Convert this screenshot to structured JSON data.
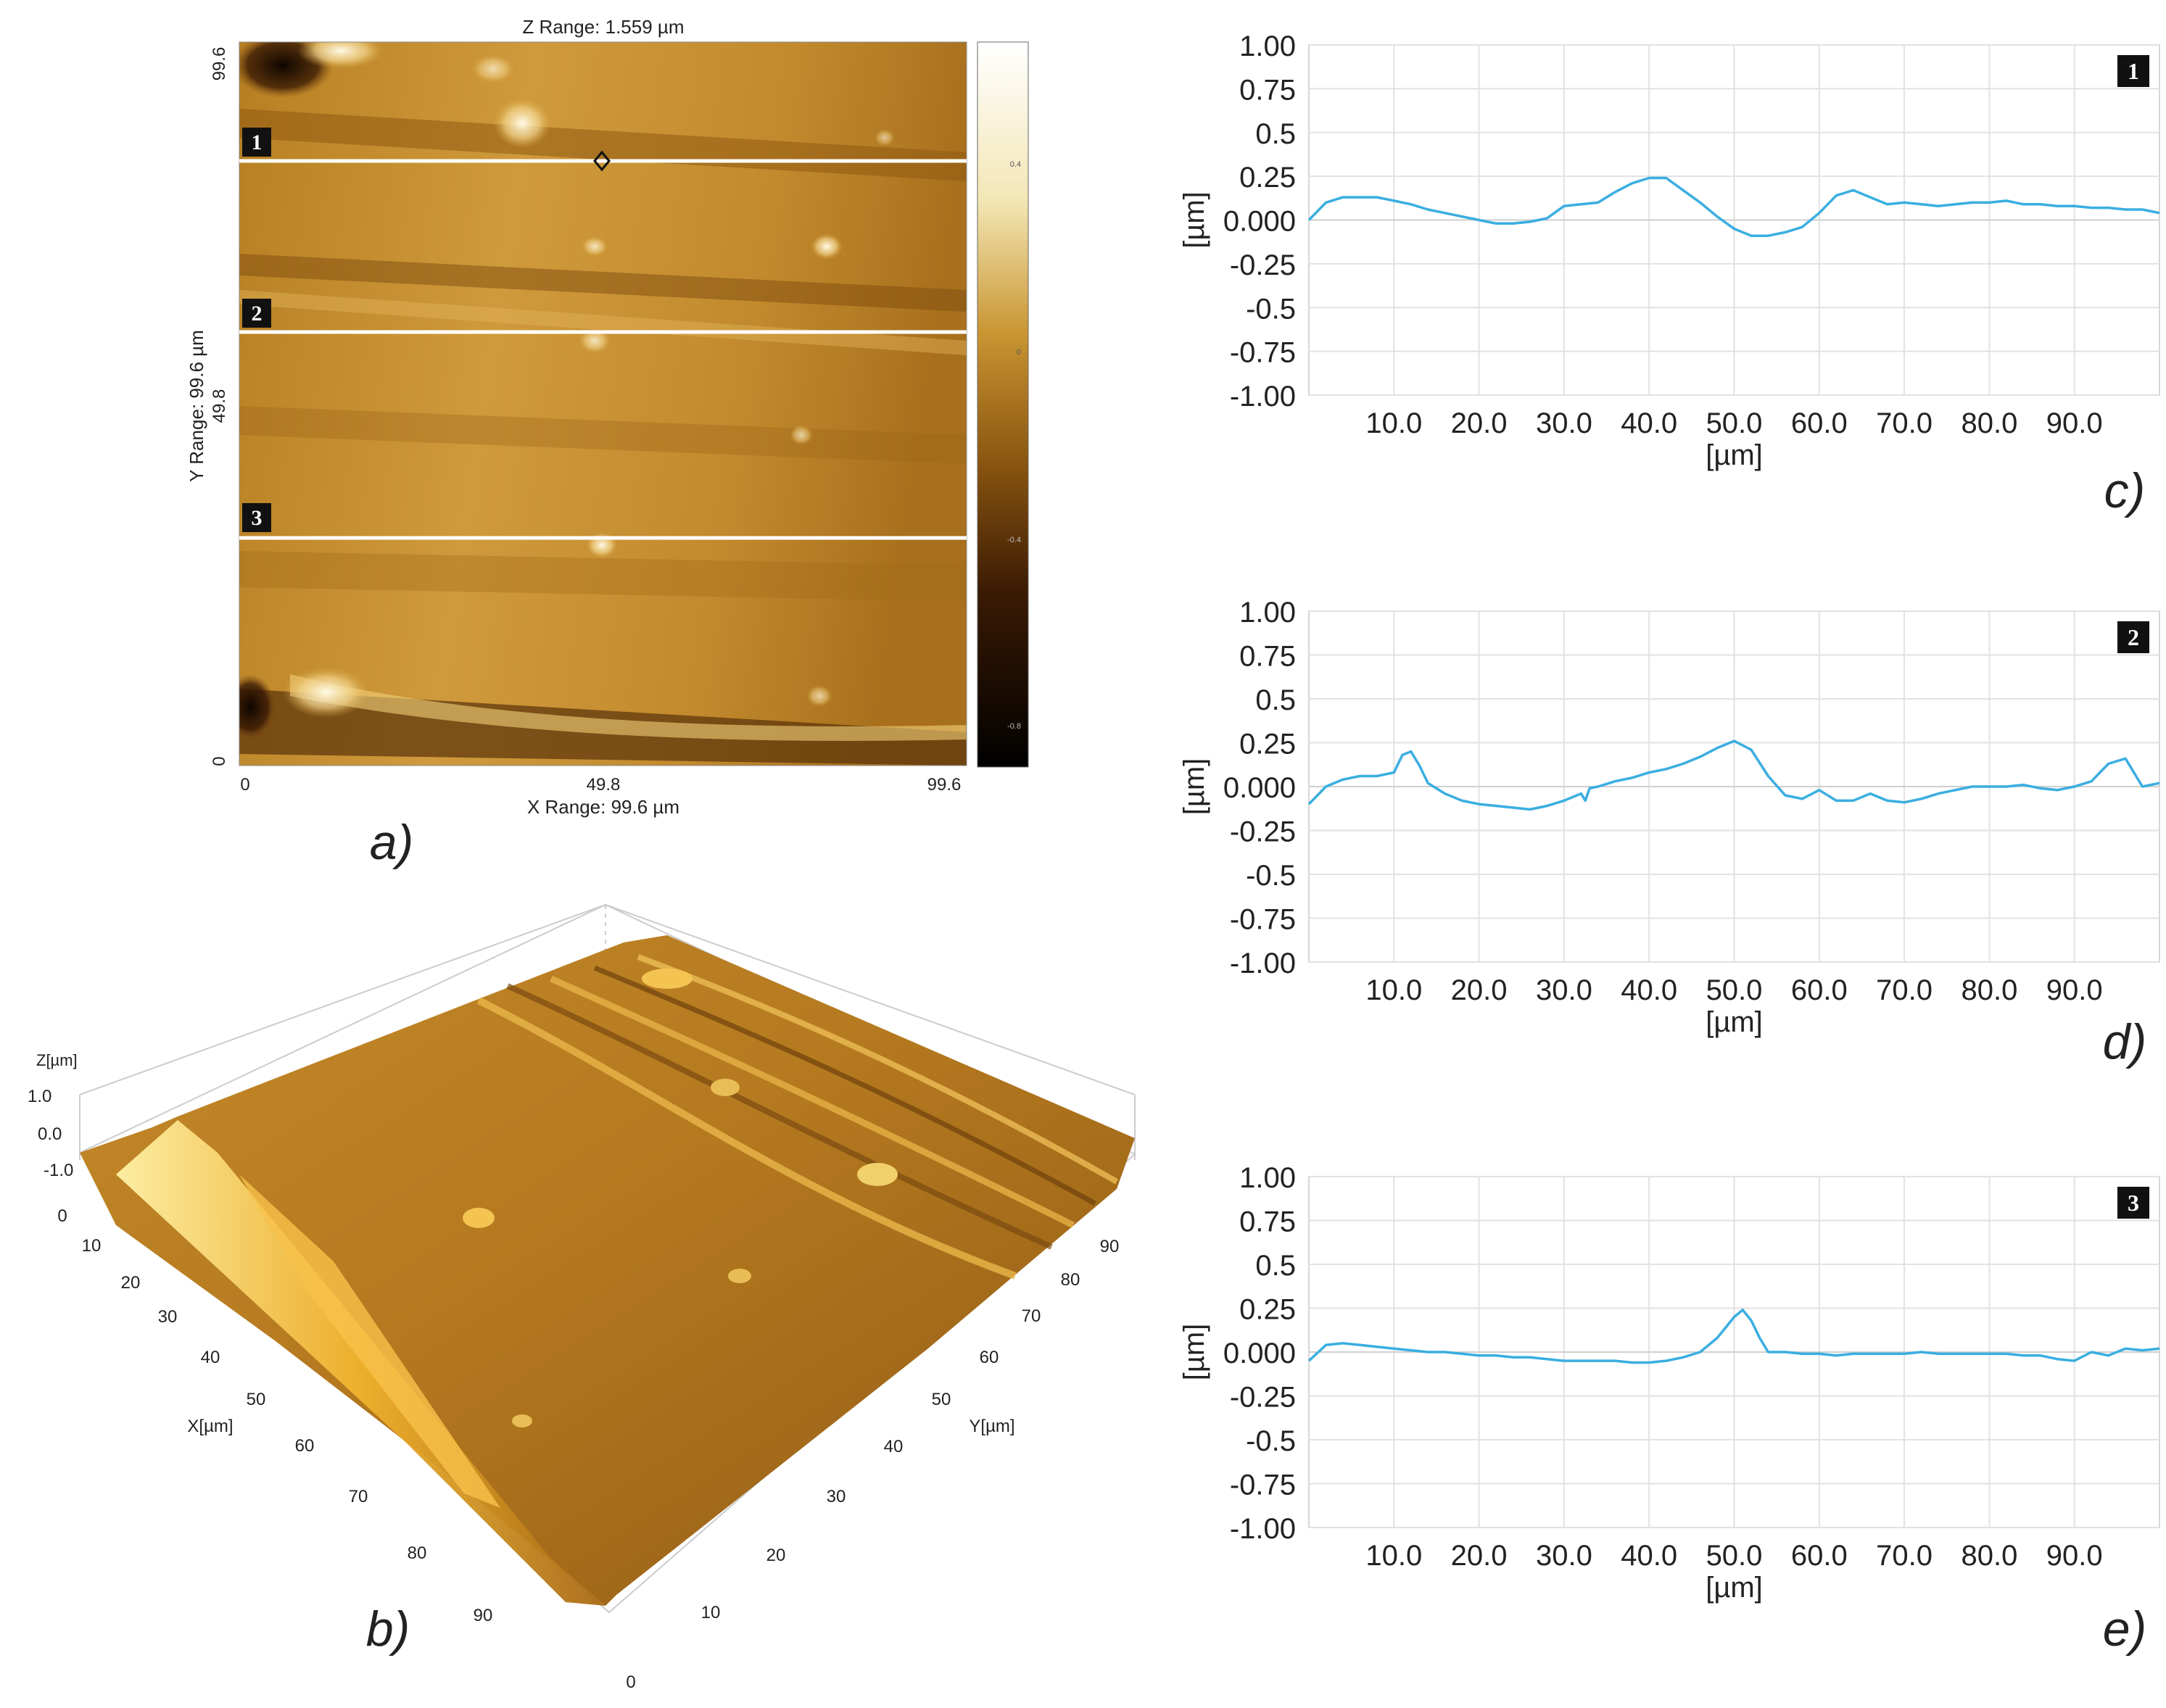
{
  "figure": {
    "labels": {
      "a": "a)",
      "b": "b)",
      "c": "c)",
      "d": "d)",
      "e": "e)"
    }
  },
  "afm_map": {
    "z_range_label": "Z Range:  1.559 µm",
    "x_range_label": "X Range:  99.6 µm",
    "y_range_label": "Y Range:  99.6 µm",
    "x_ticks": [
      "0",
      "49.8",
      "99.6"
    ],
    "y_ticks": [
      "0",
      "49.8",
      "99.6"
    ],
    "colorbar_ticks": [
      "0.4",
      "0",
      "-0.4",
      "-0.8"
    ],
    "profile_markers": [
      "1",
      "2",
      "3"
    ],
    "colors": {
      "dark": "#1a0a02",
      "mid": "#a86a14",
      "light": "#d9a743",
      "highlight": "#fff6d8"
    }
  },
  "surface_3d": {
    "z_label": "Z[µm]",
    "z_ticks": [
      "1.0",
      "0.0",
      "-1.0"
    ],
    "x_label": "X[µm]",
    "y_label": "Y[µm]",
    "x_ticks": [
      "0",
      "10",
      "20",
      "30",
      "40",
      "50",
      "60",
      "70",
      "80",
      "90"
    ],
    "y_ticks": [
      "0",
      "10",
      "20",
      "30",
      "40",
      "50",
      "60",
      "70",
      "80",
      "90"
    ]
  },
  "chart_data": [
    {
      "type": "line",
      "badge": "1",
      "xlabel": "[µm]",
      "ylabel": "[µm]",
      "xlim": [
        0,
        100
      ],
      "ylim": [
        -1.0,
        1.0
      ],
      "x_tick_values": [
        10,
        20,
        30,
        40,
        50,
        60,
        70,
        80,
        90
      ],
      "x_tick_labels": [
        "10.0",
        "20.0",
        "30.0",
        "40.0",
        "50.0",
        "60.0",
        "70.0",
        "80.0",
        "90.0"
      ],
      "y_tick_values": [
        1.0,
        0.75,
        0.5,
        0.25,
        0.0,
        -0.25,
        -0.5,
        -0.75,
        -1.0
      ],
      "y_tick_labels": [
        "1.00",
        "0.75",
        "0.5",
        "0.25",
        "0.000",
        "-0.25",
        "-0.5",
        "-0.75",
        "-1.00"
      ],
      "color": "#3aaee0",
      "x": [
        0,
        2,
        4,
        6,
        8,
        10,
        12,
        14,
        16,
        18,
        20,
        22,
        24,
        26,
        28,
        30,
        32,
        34,
        36,
        38,
        40,
        42,
        44,
        46,
        48,
        50,
        52,
        54,
        56,
        58,
        60,
        62,
        64,
        66,
        68,
        70,
        72,
        74,
        76,
        78,
        80,
        82,
        84,
        86,
        88,
        90,
        92,
        94,
        96,
        98,
        100
      ],
      "y": [
        0.0,
        0.1,
        0.13,
        0.13,
        0.13,
        0.11,
        0.09,
        0.06,
        0.04,
        0.02,
        0.0,
        -0.02,
        -0.02,
        -0.01,
        0.01,
        0.08,
        0.09,
        0.1,
        0.16,
        0.21,
        0.24,
        0.24,
        0.17,
        0.1,
        0.02,
        -0.05,
        -0.09,
        -0.09,
        -0.07,
        -0.04,
        0.04,
        0.14,
        0.17,
        0.13,
        0.09,
        0.1,
        0.09,
        0.08,
        0.09,
        0.1,
        0.1,
        0.11,
        0.09,
        0.09,
        0.08,
        0.08,
        0.07,
        0.07,
        0.06,
        0.06,
        0.04
      ]
    },
    {
      "type": "line",
      "badge": "2",
      "xlabel": "[µm]",
      "ylabel": "[µm]",
      "xlim": [
        0,
        100
      ],
      "ylim": [
        -1.0,
        1.0
      ],
      "x_tick_values": [
        10,
        20,
        30,
        40,
        50,
        60,
        70,
        80,
        90
      ],
      "x_tick_labels": [
        "10.0",
        "20.0",
        "30.0",
        "40.0",
        "50.0",
        "60.0",
        "70.0",
        "80.0",
        "90.0"
      ],
      "y_tick_values": [
        1.0,
        0.75,
        0.5,
        0.25,
        0.0,
        -0.25,
        -0.5,
        -0.75,
        -1.0
      ],
      "y_tick_labels": [
        "1.00",
        "0.75",
        "0.5",
        "0.25",
        "0.000",
        "-0.25",
        "-0.5",
        "-0.75",
        "-1.00"
      ],
      "color": "#3aaee0",
      "x": [
        0,
        2,
        4,
        6,
        8,
        10,
        11,
        12,
        13,
        14,
        16,
        18,
        20,
        22,
        24,
        26,
        28,
        30,
        32,
        32.5,
        33,
        34,
        36,
        38,
        40,
        42,
        44,
        46,
        48,
        50,
        52,
        54,
        56,
        58,
        60,
        62,
        64,
        66,
        68,
        70,
        72,
        74,
        76,
        78,
        80,
        82,
        84,
        86,
        88,
        90,
        92,
        94,
        96,
        98,
        100
      ],
      "y": [
        -0.1,
        0.0,
        0.04,
        0.06,
        0.06,
        0.08,
        0.18,
        0.2,
        0.12,
        0.02,
        -0.04,
        -0.08,
        -0.1,
        -0.11,
        -0.12,
        -0.13,
        -0.11,
        -0.08,
        -0.04,
        -0.08,
        -0.01,
        0.0,
        0.03,
        0.05,
        0.08,
        0.1,
        0.13,
        0.17,
        0.22,
        0.26,
        0.21,
        0.06,
        -0.05,
        -0.07,
        -0.02,
        -0.08,
        -0.08,
        -0.04,
        -0.08,
        -0.09,
        -0.07,
        -0.04,
        -0.02,
        0.0,
        0.0,
        0.0,
        0.01,
        -0.01,
        -0.02,
        0.0,
        0.03,
        0.13,
        0.16,
        0.0,
        0.02
      ]
    },
    {
      "type": "line",
      "badge": "3",
      "xlabel": "[µm]",
      "ylabel": "[µm]",
      "xlim": [
        0,
        100
      ],
      "ylim": [
        -1.0,
        1.0
      ],
      "x_tick_values": [
        10,
        20,
        30,
        40,
        50,
        60,
        70,
        80,
        90
      ],
      "x_tick_labels": [
        "10.0",
        "20.0",
        "30.0",
        "40.0",
        "50.0",
        "60.0",
        "70.0",
        "80.0",
        "90.0"
      ],
      "y_tick_values": [
        1.0,
        0.75,
        0.5,
        0.25,
        0.0,
        -0.25,
        -0.5,
        -0.75,
        -1.0
      ],
      "y_tick_labels": [
        "1.00",
        "0.75",
        "0.5",
        "0.25",
        "0.000",
        "-0.25",
        "-0.5",
        "-0.75",
        "-1.00"
      ],
      "color": "#3aaee0",
      "x": [
        0,
        2,
        4,
        6,
        8,
        10,
        12,
        14,
        16,
        18,
        20,
        22,
        24,
        26,
        28,
        30,
        32,
        34,
        36,
        38,
        40,
        42,
        44,
        46,
        48,
        49,
        50,
        51,
        52,
        53,
        54,
        56,
        58,
        60,
        62,
        64,
        66,
        68,
        70,
        72,
        74,
        76,
        78,
        80,
        82,
        84,
        86,
        88,
        90,
        92,
        94,
        96,
        98,
        100
      ],
      "y": [
        -0.05,
        0.04,
        0.05,
        0.04,
        0.03,
        0.02,
        0.01,
        0.0,
        0.0,
        -0.01,
        -0.02,
        -0.02,
        -0.03,
        -0.03,
        -0.04,
        -0.05,
        -0.05,
        -0.05,
        -0.05,
        -0.06,
        -0.06,
        -0.05,
        -0.03,
        0.0,
        0.08,
        0.14,
        0.2,
        0.24,
        0.18,
        0.08,
        0.0,
        0.0,
        -0.01,
        -0.01,
        -0.02,
        -0.01,
        -0.01,
        -0.01,
        -0.01,
        0.0,
        -0.01,
        -0.01,
        -0.01,
        -0.01,
        -0.01,
        -0.02,
        -0.02,
        -0.04,
        -0.05,
        0.0,
        -0.02,
        0.02,
        0.01,
        0.02
      ]
    }
  ]
}
